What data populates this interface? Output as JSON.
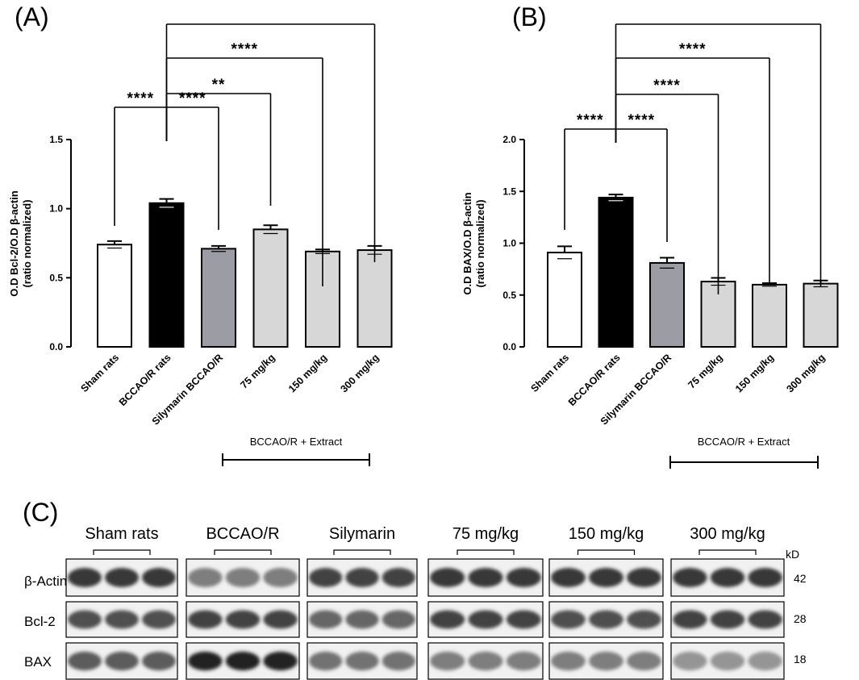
{
  "panels": {
    "A": "(A)",
    "B": "(B)",
    "C": "(C)"
  },
  "colors": {
    "sham": "#ffffff",
    "bccao": "#000000",
    "silymarin": "#9c9ca4",
    "extract": "#d7d7d7"
  },
  "chart_data": [
    {
      "type": "bar",
      "panel": "A",
      "categories": [
        "Sham rats",
        "BCCAO/R rats",
        "Silymarin BCCAO/R",
        "75 mg/kg",
        "150 mg/kg",
        "300 mg/kg"
      ],
      "values": [
        0.74,
        1.04,
        0.71,
        0.85,
        0.69,
        0.7
      ],
      "errors": [
        0.025,
        0.03,
        0.02,
        0.03,
        0.015,
        0.03
      ],
      "ylabel_line1": "O.D Bcl-2/O.D β-actin",
      "ylabel_line2": "(ratio normalized)",
      "ylim": [
        0,
        1.5
      ],
      "yticks": [
        "0.0",
        "0.5",
        "1.0",
        "1.5"
      ],
      "group_label": "BCCAO/R + Extract",
      "comparisons": [
        {
          "from": 1,
          "to": 0,
          "label": "****"
        },
        {
          "from": 1,
          "to": 2,
          "label": "****"
        },
        {
          "from": 1,
          "to": 3,
          "label": "**"
        },
        {
          "from": 1,
          "to": 4,
          "label": "****"
        },
        {
          "from": 1,
          "to": 5,
          "label": ""
        }
      ]
    },
    {
      "type": "bar",
      "panel": "B",
      "categories": [
        "Sham rats",
        "BCCAO/R rats",
        "Silymarin BCCAO/R",
        "75 mg/kg",
        "150 mg/kg",
        "300 mg/kg"
      ],
      "values": [
        0.91,
        1.44,
        0.81,
        0.63,
        0.6,
        0.61
      ],
      "errors": [
        0.06,
        0.03,
        0.05,
        0.035,
        0.015,
        0.03
      ],
      "ylabel_line1": "O.D BAX/O.D β-actin",
      "ylabel_line2": "(ratio normalized)",
      "ylim": [
        0,
        2.0
      ],
      "yticks": [
        "0.0",
        "0.5",
        "1.0",
        "1.5",
        "2.0"
      ],
      "group_label": "BCCAO/R + Extract",
      "comparisons": [
        {
          "from": 1,
          "to": 0,
          "label": "****"
        },
        {
          "from": 1,
          "to": 2,
          "label": "****"
        },
        {
          "from": 1,
          "to": 3,
          "label": "****"
        },
        {
          "from": 1,
          "to": 4,
          "label": "****"
        },
        {
          "from": 1,
          "to": 5,
          "label": ""
        }
      ]
    }
  ],
  "blot": {
    "groups": [
      "Sham rats",
      "BCCAO/R",
      "Silymarin",
      "75 mg/kg",
      "150 mg/kg",
      "300 mg/kg"
    ],
    "rows": [
      "β-Actin",
      "Bcl-2",
      "BAX"
    ],
    "kd_header": "kD",
    "kd_values": [
      "42",
      "28",
      "18"
    ],
    "band_intensity": [
      [
        0.85,
        0.75,
        0.7
      ],
      [
        0.55,
        0.8,
        0.95
      ],
      [
        0.8,
        0.65,
        0.6
      ],
      [
        0.85,
        0.8,
        0.55
      ],
      [
        0.85,
        0.75,
        0.55
      ],
      [
        0.85,
        0.8,
        0.45
      ]
    ]
  }
}
